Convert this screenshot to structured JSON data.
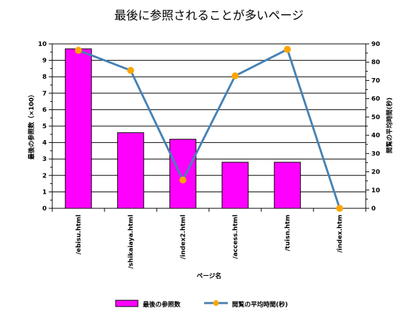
{
  "chart_data": {
    "type": "bar+line",
    "title": "最後に参照されることが多いページ",
    "xlabel": "ページ名",
    "ylabel_left": "最後の参照数（×100）",
    "ylabel_right": "閲覧の平均時間(秒)",
    "categories": [
      "/ebisu.html",
      "/shikaiaya.html",
      "/index2.html",
      "/access.html",
      "/tuisn.htm",
      "/index.htm"
    ],
    "ylim_left": [
      0,
      10
    ],
    "ylim_right": [
      0,
      90
    ],
    "yticks_left": [
      "0",
      "1",
      "2",
      "3",
      "4",
      "5",
      "6",
      "7",
      "8",
      "9",
      "10"
    ],
    "yticks_right": [
      "0",
      "10",
      "20",
      "30",
      "40",
      "50",
      "60",
      "70",
      "80",
      "90"
    ],
    "series": [
      {
        "name": "最後の参照数",
        "kind": "bar",
        "axis": "left",
        "color": "#ff00ff",
        "values": [
          9.7,
          4.6,
          4.2,
          2.8,
          2.8,
          0
        ]
      },
      {
        "name": "閲覧の平均時間(秒)",
        "kind": "line",
        "axis": "right",
        "color": "#4682b4",
        "marker_color": "#ffa500",
        "values": [
          86.5,
          75.5,
          15.5,
          72.5,
          87,
          0
        ]
      }
    ],
    "grid": true,
    "legend_position": "bottom"
  }
}
